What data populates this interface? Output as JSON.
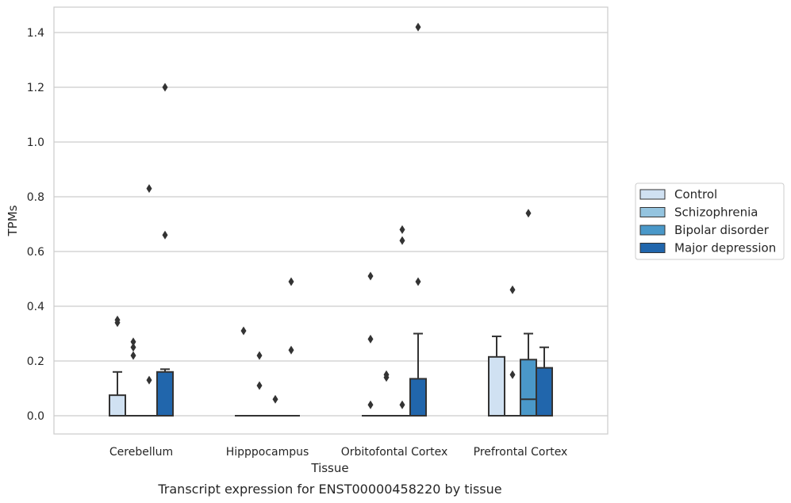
{
  "chart_data": {
    "type": "boxplot",
    "xlabel": "Tissue",
    "ylabel": "TPMs",
    "caption": "Transcript expression for ENST00000458220 by tissue",
    "ylim": [
      -0.07,
      1.49
    ],
    "yticks": [
      "0.0",
      "0.2",
      "0.4",
      "0.6",
      "0.8",
      "1.0",
      "1.2",
      "1.4"
    ],
    "grid": true,
    "legend_position": "right",
    "categories": [
      "Cerebellum",
      "Hipppocampus",
      "Orbitofontal Cortex",
      "Prefrontal Cortex"
    ],
    "series": [
      {
        "name": "Control",
        "color": "#d0e1f2",
        "boxes": [
          {
            "q1": 0.0,
            "median": 0.0,
            "q3": 0.075,
            "whisker_low": 0.0,
            "whisker_high": 0.16,
            "outliers": [
              0.34,
              0.35
            ]
          },
          {
            "q1": 0.0,
            "median": 0.0,
            "q3": 0.0,
            "whisker_low": 0.0,
            "whisker_high": 0.0,
            "outliers": [
              0.31
            ]
          },
          {
            "q1": 0.0,
            "median": 0.0,
            "q3": 0.0,
            "whisker_low": 0.0,
            "whisker_high": 0.0,
            "outliers": [
              0.04,
              0.28,
              0.51
            ]
          },
          {
            "q1": 0.0,
            "median": 0.0,
            "q3": 0.215,
            "whisker_low": 0.0,
            "whisker_high": 0.29,
            "outliers": []
          }
        ]
      },
      {
        "name": "Schizophrenia",
        "color": "#94c4df",
        "boxes": [
          {
            "q1": 0.0,
            "median": 0.0,
            "q3": 0.0,
            "whisker_low": 0.0,
            "whisker_high": 0.0,
            "outliers": [
              0.22,
              0.25,
              0.27
            ]
          },
          {
            "q1": 0.0,
            "median": 0.0,
            "q3": 0.0,
            "whisker_low": 0.0,
            "whisker_high": 0.0,
            "outliers": [
              0.11,
              0.22
            ]
          },
          {
            "q1": 0.0,
            "median": 0.0,
            "q3": 0.0,
            "whisker_low": 0.0,
            "whisker_high": 0.0,
            "outliers": [
              0.14,
              0.15
            ]
          },
          {
            "q1": 0.0,
            "median": 0.0,
            "q3": 0.0,
            "whisker_low": 0.0,
            "whisker_high": 0.0,
            "outliers": [
              0.15,
              0.46
            ]
          }
        ]
      },
      {
        "name": "Bipolar disorder",
        "color": "#4a98c9",
        "boxes": [
          {
            "q1": 0.0,
            "median": 0.0,
            "q3": 0.0,
            "whisker_low": 0.0,
            "whisker_high": 0.0,
            "outliers": [
              0.13,
              0.83
            ]
          },
          {
            "q1": 0.0,
            "median": 0.0,
            "q3": 0.0,
            "whisker_low": 0.0,
            "whisker_high": 0.0,
            "outliers": [
              0.06
            ]
          },
          {
            "q1": 0.0,
            "median": 0.0,
            "q3": 0.0,
            "whisker_low": 0.0,
            "whisker_high": 0.0,
            "outliers": [
              0.04,
              0.64,
              0.68
            ]
          },
          {
            "q1": 0.0,
            "median": 0.06,
            "q3": 0.205,
            "whisker_low": 0.0,
            "whisker_high": 0.3,
            "outliers": [
              0.74
            ]
          }
        ]
      },
      {
        "name": "Major depression",
        "color": "#2166ac",
        "boxes": [
          {
            "q1": 0.0,
            "median": 0.0,
            "q3": 0.16,
            "whisker_low": 0.0,
            "whisker_high": 0.17,
            "outliers": [
              0.66,
              1.2
            ]
          },
          {
            "q1": 0.0,
            "median": 0.0,
            "q3": 0.0,
            "whisker_low": 0.0,
            "whisker_high": 0.0,
            "outliers": [
              0.24,
              0.49
            ]
          },
          {
            "q1": 0.0,
            "median": 0.0,
            "q3": 0.135,
            "whisker_low": 0.0,
            "whisker_high": 0.3,
            "outliers": [
              0.49,
              1.42
            ]
          },
          {
            "q1": 0.0,
            "median": 0.0,
            "q3": 0.175,
            "whisker_low": 0.0,
            "whisker_high": 0.25,
            "outliers": []
          }
        ]
      }
    ]
  }
}
